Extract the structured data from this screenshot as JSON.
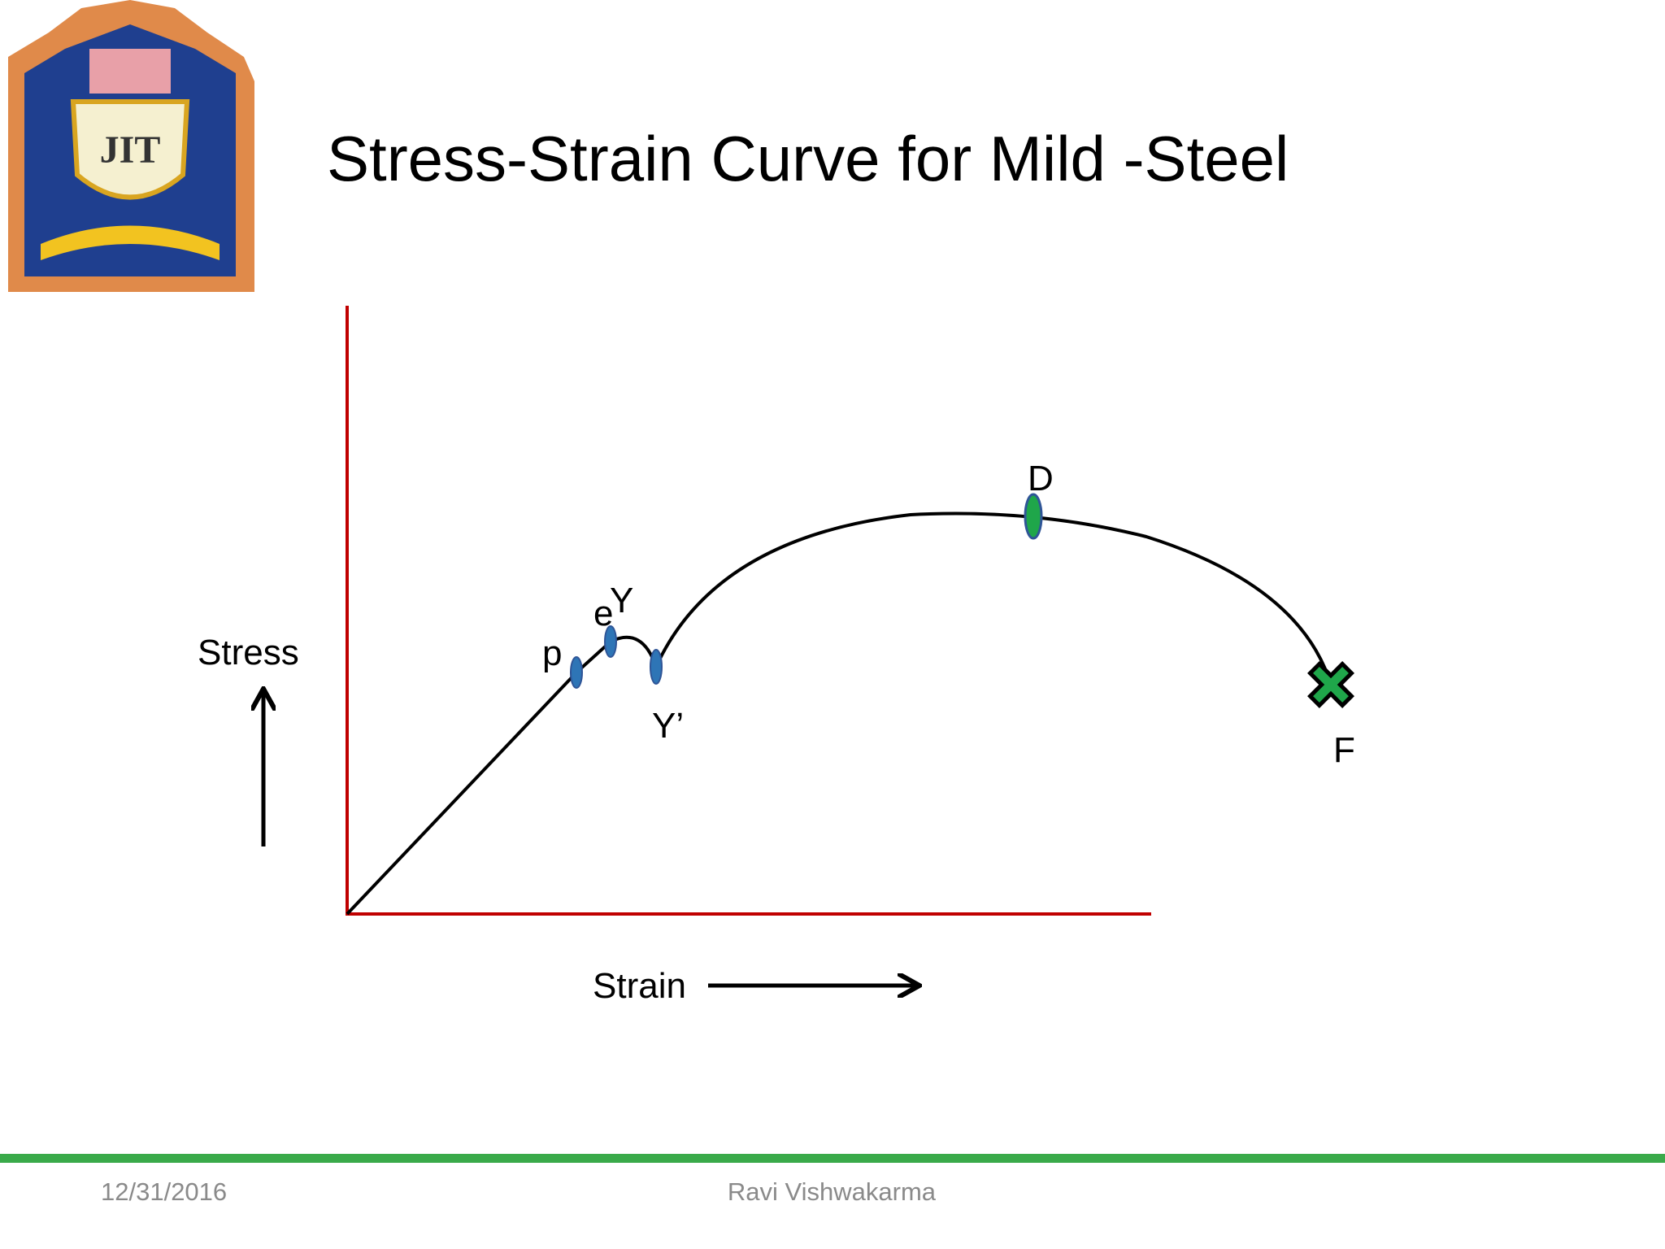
{
  "header": {
    "title": "Stress-Strain Curve for Mild -Steel"
  },
  "logo": {
    "text": "JIT"
  },
  "diagram": {
    "y_label": "Stress",
    "x_label": "Strain",
    "points": [
      {
        "label": "p"
      },
      {
        "label": "e"
      },
      {
        "label": "Y"
      },
      {
        "label": "Y’"
      },
      {
        "label": "D"
      },
      {
        "label": "F"
      }
    ]
  },
  "footer": {
    "date": "12/31/2016",
    "author": "Ravi Vishwakarma"
  }
}
